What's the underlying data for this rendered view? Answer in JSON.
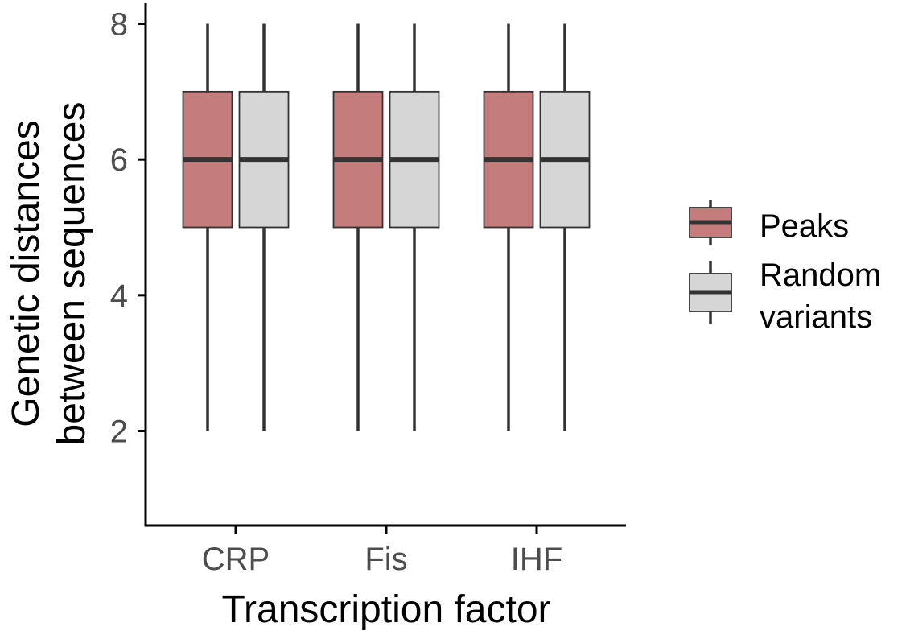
{
  "chart_data": {
    "type": "boxplot",
    "categories": [
      "CRP",
      "Fis",
      "IHF"
    ],
    "xlabel": "Transcription factor",
    "ylabel_lines": [
      "Genetic distances",
      "between sequences"
    ],
    "ylim": [
      0.8,
      8.3
    ],
    "yticks": [
      2,
      4,
      6,
      8
    ],
    "ytick_labels": [
      "2",
      "4",
      "6",
      "8"
    ],
    "grid": false,
    "legend_position": "right",
    "series": [
      {
        "name": "Peaks",
        "color": "#c47c7c",
        "boxes": [
          {
            "min": 2,
            "q1": 5,
            "median": 6,
            "q3": 7,
            "max": 8
          },
          {
            "min": 2,
            "q1": 5,
            "median": 6,
            "q3": 7,
            "max": 8
          },
          {
            "min": 2,
            "q1": 5,
            "median": 6,
            "q3": 7,
            "max": 8
          }
        ]
      },
      {
        "name": "Random variants",
        "legend_lines": [
          "Random",
          "variants"
        ],
        "color": "#d6d6d6",
        "boxes": [
          {
            "min": 2,
            "q1": 5,
            "median": 6,
            "q3": 7,
            "max": 8
          },
          {
            "min": 2,
            "q1": 5,
            "median": 6,
            "q3": 7,
            "max": 8
          },
          {
            "min": 2,
            "q1": 5,
            "median": 6,
            "q3": 7,
            "max": 8
          }
        ]
      }
    ],
    "line_color": "#333333",
    "axis_color": "#000000"
  }
}
